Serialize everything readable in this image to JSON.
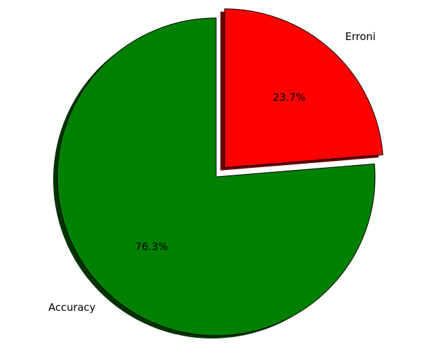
{
  "chart_data": {
    "type": "pie",
    "slices": [
      {
        "label": "Erroni",
        "value": 23.7,
        "pct_label": "23.7%",
        "color": "#ff0000",
        "shadow_color": "#660000",
        "exploded": true
      },
      {
        "label": "Accuracy",
        "value": 76.3,
        "pct_label": "76.3%",
        "color": "#008000",
        "shadow_color": "#003300",
        "exploded": false
      }
    ],
    "start_angle_deg": 90,
    "direction": "clockwise",
    "shadow": true,
    "legend": false
  }
}
